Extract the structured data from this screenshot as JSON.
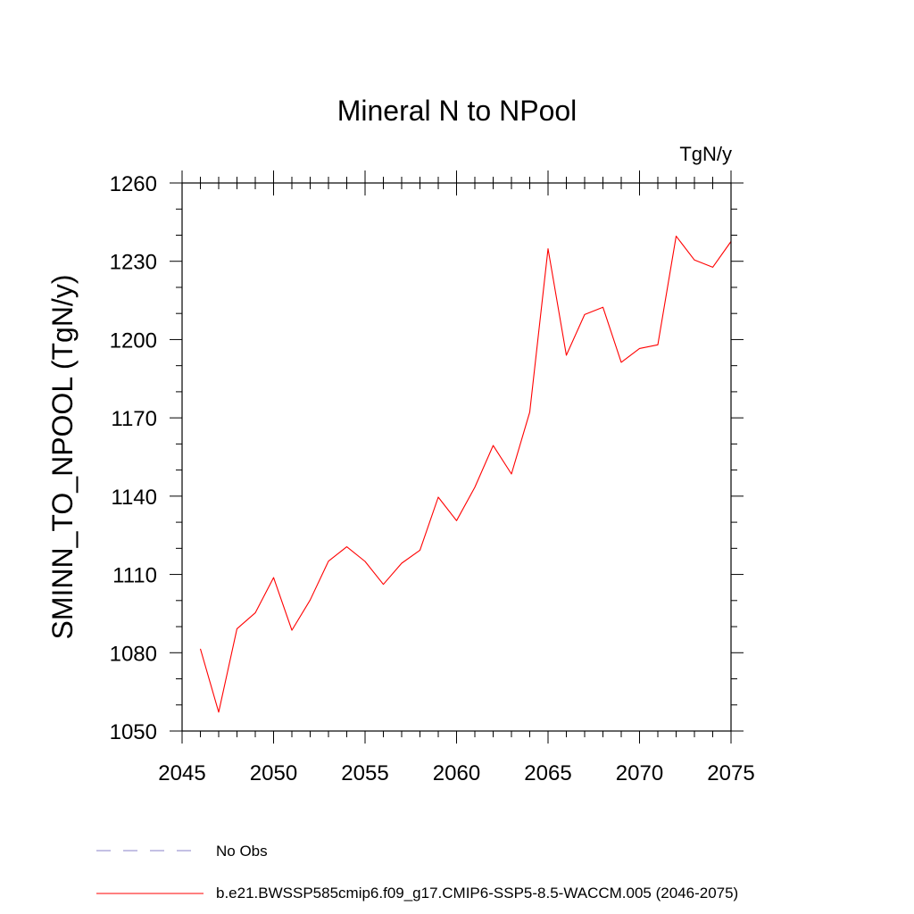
{
  "chart_data": {
    "type": "line",
    "title": "Mineral N to NPool",
    "units_label": "TgN/y",
    "ylabel": "SMINN_TO_NPOOL  (TgN/y)",
    "xlabel": "",
    "xlim": [
      2045,
      2075
    ],
    "ylim": [
      1050,
      1260
    ],
    "xticks": [
      2045,
      2050,
      2055,
      2060,
      2065,
      2070,
      2075
    ],
    "yticks": [
      1050,
      1080,
      1110,
      1140,
      1170,
      1200,
      1230,
      1260
    ],
    "x_minor_step": 1,
    "y_minor_step": 10,
    "grid": false,
    "series": [
      {
        "name": "b.e21.BWSSP585cmip6.f09_g17.CMIP6-SSP5-8.5-WACCM.005 (2046-2075)",
        "color": "#ff0000",
        "style": "solid",
        "x": [
          2046,
          2047,
          2048,
          2049,
          2050,
          2051,
          2052,
          2053,
          2054,
          2055,
          2056,
          2057,
          2058,
          2059,
          2060,
          2061,
          2062,
          2063,
          2064,
          2065,
          2066,
          2067,
          2068,
          2069,
          2070,
          2071,
          2072,
          2073,
          2074,
          2075
        ],
        "values": [
          1081.5,
          1057.2,
          1089.2,
          1095.3,
          1108.8,
          1088.6,
          1100.2,
          1115.1,
          1120.6,
          1115.0,
          1106.2,
          1114.3,
          1119.3,
          1139.6,
          1130.6,
          1143.4,
          1159.4,
          1148.5,
          1172.2,
          1234.8,
          1194.0,
          1209.6,
          1212.4,
          1191.3,
          1196.6,
          1198.0,
          1239.6,
          1230.5,
          1227.7,
          1237.6
        ]
      }
    ],
    "legend": {
      "placement": "bottom",
      "entries": [
        {
          "label": "No Obs",
          "color": "#8a80c8",
          "style": "dashed"
        },
        {
          "label": "b.e21.BWSSP585cmip6.f09_g17.CMIP6-SSP5-8.5-WACCM.005 (2046-2075)",
          "color": "#ff0000",
          "style": "solid"
        }
      ]
    }
  }
}
